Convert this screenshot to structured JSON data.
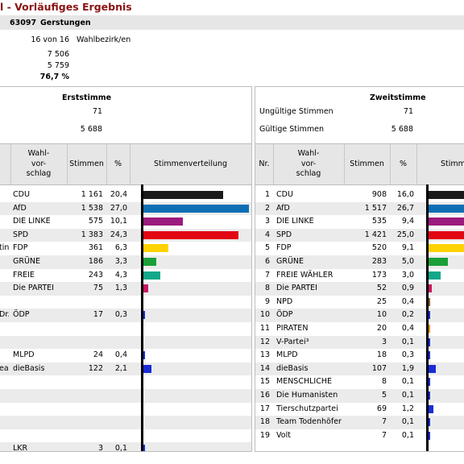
{
  "header": {
    "title": "l - Vorläufiges Ergebnis",
    "gemeinde_code": "63097",
    "gemeinde_name": "Gerstungen",
    "bezirke_count": "16 von 16",
    "bezirke_label": "Wahlbezirk/en",
    "wahlberechtigte": "7 506",
    "waehler": "5 759",
    "wahlbeteiligung": "76,7 %"
  },
  "erststimme": {
    "title": "Erststimme",
    "ungueltig_value": "71",
    "gueltig_value": "5 688",
    "columns": {
      "vorschlag": "Wahl-\nvor-\nschlag",
      "stimmen": "Stimmen",
      "prozent": "%",
      "verteilung": "Stimmenverteilung"
    },
    "rows": [
      {
        "name": "",
        "party": "CDU",
        "stimmen": "1 161",
        "prozent": "20,4",
        "pct": 20.4,
        "color": "#1a1a1a"
      },
      {
        "name": "",
        "party": "AfD",
        "stimmen": "1 538",
        "prozent": "27,0",
        "pct": 27.0,
        "color": "#0f6fb4"
      },
      {
        "name": "",
        "party": "DIE LINKE",
        "stimmen": "575",
        "prozent": "10,1",
        "pct": 10.1,
        "color": "#9b1b7e"
      },
      {
        "name": "",
        "party": "SPD",
        "stimmen": "1 383",
        "prozent": "24,3",
        "pct": 24.3,
        "color": "#e30613"
      },
      {
        "name": "tin",
        "party": "FDP",
        "stimmen": "361",
        "prozent": "6,3",
        "pct": 6.3,
        "color": "#ffd200"
      },
      {
        "name": "",
        "party": "GRÜNE",
        "stimmen": "186",
        "prozent": "3,3",
        "pct": 3.3,
        "color": "#1aa037"
      },
      {
        "name": "",
        "party": "FREIE WÄHLER",
        "stimmen": "243",
        "prozent": "4,3",
        "pct": 4.3,
        "color": "#13a88a"
      },
      {
        "name": "",
        "party": "Die PARTEI",
        "stimmen": "75",
        "prozent": "1,3",
        "pct": 1.3,
        "color": "#c8175e"
      },
      {
        "name": "",
        "party": "",
        "stimmen": "",
        "prozent": "",
        "pct": 0,
        "color": ""
      },
      {
        "name": "Dr.",
        "party": "ÖDP",
        "stimmen": "17",
        "prozent": "0,3",
        "pct": 0.3,
        "color": "#1a2bd6"
      },
      {
        "name": "",
        "party": "",
        "stimmen": "",
        "prozent": "",
        "pct": 0,
        "color": ""
      },
      {
        "name": "",
        "party": "",
        "stimmen": "",
        "prozent": "",
        "pct": 0,
        "color": ""
      },
      {
        "name": "",
        "party": "MLPD",
        "stimmen": "24",
        "prozent": "0,4",
        "pct": 0.4,
        "color": "#1a2bd6"
      },
      {
        "name": "eas",
        "party": "dieBasis",
        "stimmen": "122",
        "prozent": "2,1",
        "pct": 2.1,
        "color": "#1a2bd6"
      },
      {
        "name": "",
        "party": "",
        "stimmen": "",
        "prozent": "",
        "pct": 0,
        "color": ""
      },
      {
        "name": "",
        "party": "",
        "stimmen": "",
        "prozent": "",
        "pct": 0,
        "color": ""
      },
      {
        "name": "",
        "party": "",
        "stimmen": "",
        "prozent": "",
        "pct": 0,
        "color": ""
      },
      {
        "name": "",
        "party": "",
        "stimmen": "",
        "prozent": "",
        "pct": 0,
        "color": ""
      },
      {
        "name": "",
        "party": "",
        "stimmen": "",
        "prozent": "",
        "pct": 0,
        "color": ""
      },
      {
        "name": "",
        "party": "LKR",
        "stimmen": "3",
        "prozent": "0,1",
        "pct": 0.1,
        "color": "#1a2bd6"
      }
    ]
  },
  "zweitstimme": {
    "title": "Zweitstimme",
    "ungueltig_label": "Ungültige Stimmen",
    "ungueltig_value": "71",
    "gueltig_label": "Gültige Stimmen",
    "gueltig_value": "5 688",
    "columns": {
      "nr": "Nr.",
      "vorschlag": "Wahl-\nvor-\nschlag",
      "stimmen": "Stimmen",
      "prozent": "%",
      "verteilung": "Stimm"
    },
    "rows": [
      {
        "nr": "1",
        "party": "CDU",
        "stimmen": "908",
        "prozent": "16,0",
        "pct": 16.0,
        "color": "#1a1a1a"
      },
      {
        "nr": "2",
        "party": "AfD",
        "stimmen": "1 517",
        "prozent": "26,7",
        "pct": 26.7,
        "color": "#0f6fb4"
      },
      {
        "nr": "3",
        "party": "DIE LINKE",
        "stimmen": "535",
        "prozent": "9,4",
        "pct": 9.4,
        "color": "#9b1b7e"
      },
      {
        "nr": "4",
        "party": "SPD",
        "stimmen": "1 421",
        "prozent": "25,0",
        "pct": 25.0,
        "color": "#e30613"
      },
      {
        "nr": "5",
        "party": "FDP",
        "stimmen": "520",
        "prozent": "9,1",
        "pct": 9.1,
        "color": "#ffd200"
      },
      {
        "nr": "6",
        "party": "GRÜNE",
        "stimmen": "283",
        "prozent": "5,0",
        "pct": 5.0,
        "color": "#1aa037"
      },
      {
        "nr": "7",
        "party": "FREIE WÄHLER",
        "stimmen": "173",
        "prozent": "3,0",
        "pct": 3.0,
        "color": "#13a88a"
      },
      {
        "nr": "8",
        "party": "Die PARTEI",
        "stimmen": "52",
        "prozent": "0,9",
        "pct": 0.9,
        "color": "#c8175e"
      },
      {
        "nr": "9",
        "party": "NPD",
        "stimmen": "25",
        "prozent": "0,4",
        "pct": 0.4,
        "color": "#8a5a2a"
      },
      {
        "nr": "10",
        "party": "ÖDP",
        "stimmen": "10",
        "prozent": "0,2",
        "pct": 0.2,
        "color": "#1a2bd6"
      },
      {
        "nr": "11",
        "party": "PIRATEN",
        "stimmen": "20",
        "prozent": "0,4",
        "pct": 0.4,
        "color": "#f39200"
      },
      {
        "nr": "12",
        "party": "V-Partei³",
        "stimmen": "3",
        "prozent": "0,1",
        "pct": 0.1,
        "color": "#1a2bd6"
      },
      {
        "nr": "13",
        "party": "MLPD",
        "stimmen": "18",
        "prozent": "0,3",
        "pct": 0.3,
        "color": "#1a2bd6"
      },
      {
        "nr": "14",
        "party": "dieBasis",
        "stimmen": "107",
        "prozent": "1,9",
        "pct": 1.9,
        "color": "#1a2bd6"
      },
      {
        "nr": "15",
        "party": "MENSCHLICHE WELT",
        "stimmen": "8",
        "prozent": "0,1",
        "pct": 0.1,
        "color": "#1a2bd6"
      },
      {
        "nr": "16",
        "party": "Die Humanisten",
        "stimmen": "5",
        "prozent": "0,1",
        "pct": 0.1,
        "color": "#1a2bd6"
      },
      {
        "nr": "17",
        "party": "Tierschutzpartei",
        "stimmen": "69",
        "prozent": "1,2",
        "pct": 1.2,
        "color": "#1a2bd6"
      },
      {
        "nr": "18",
        "party": "Team Todenhöfer",
        "stimmen": "7",
        "prozent": "0,1",
        "pct": 0.1,
        "color": "#1a2bd6"
      },
      {
        "nr": "19",
        "party": "Volt",
        "stimmen": "7",
        "prozent": "0,1",
        "pct": 0.1,
        "color": "#1a2bd6"
      }
    ]
  }
}
